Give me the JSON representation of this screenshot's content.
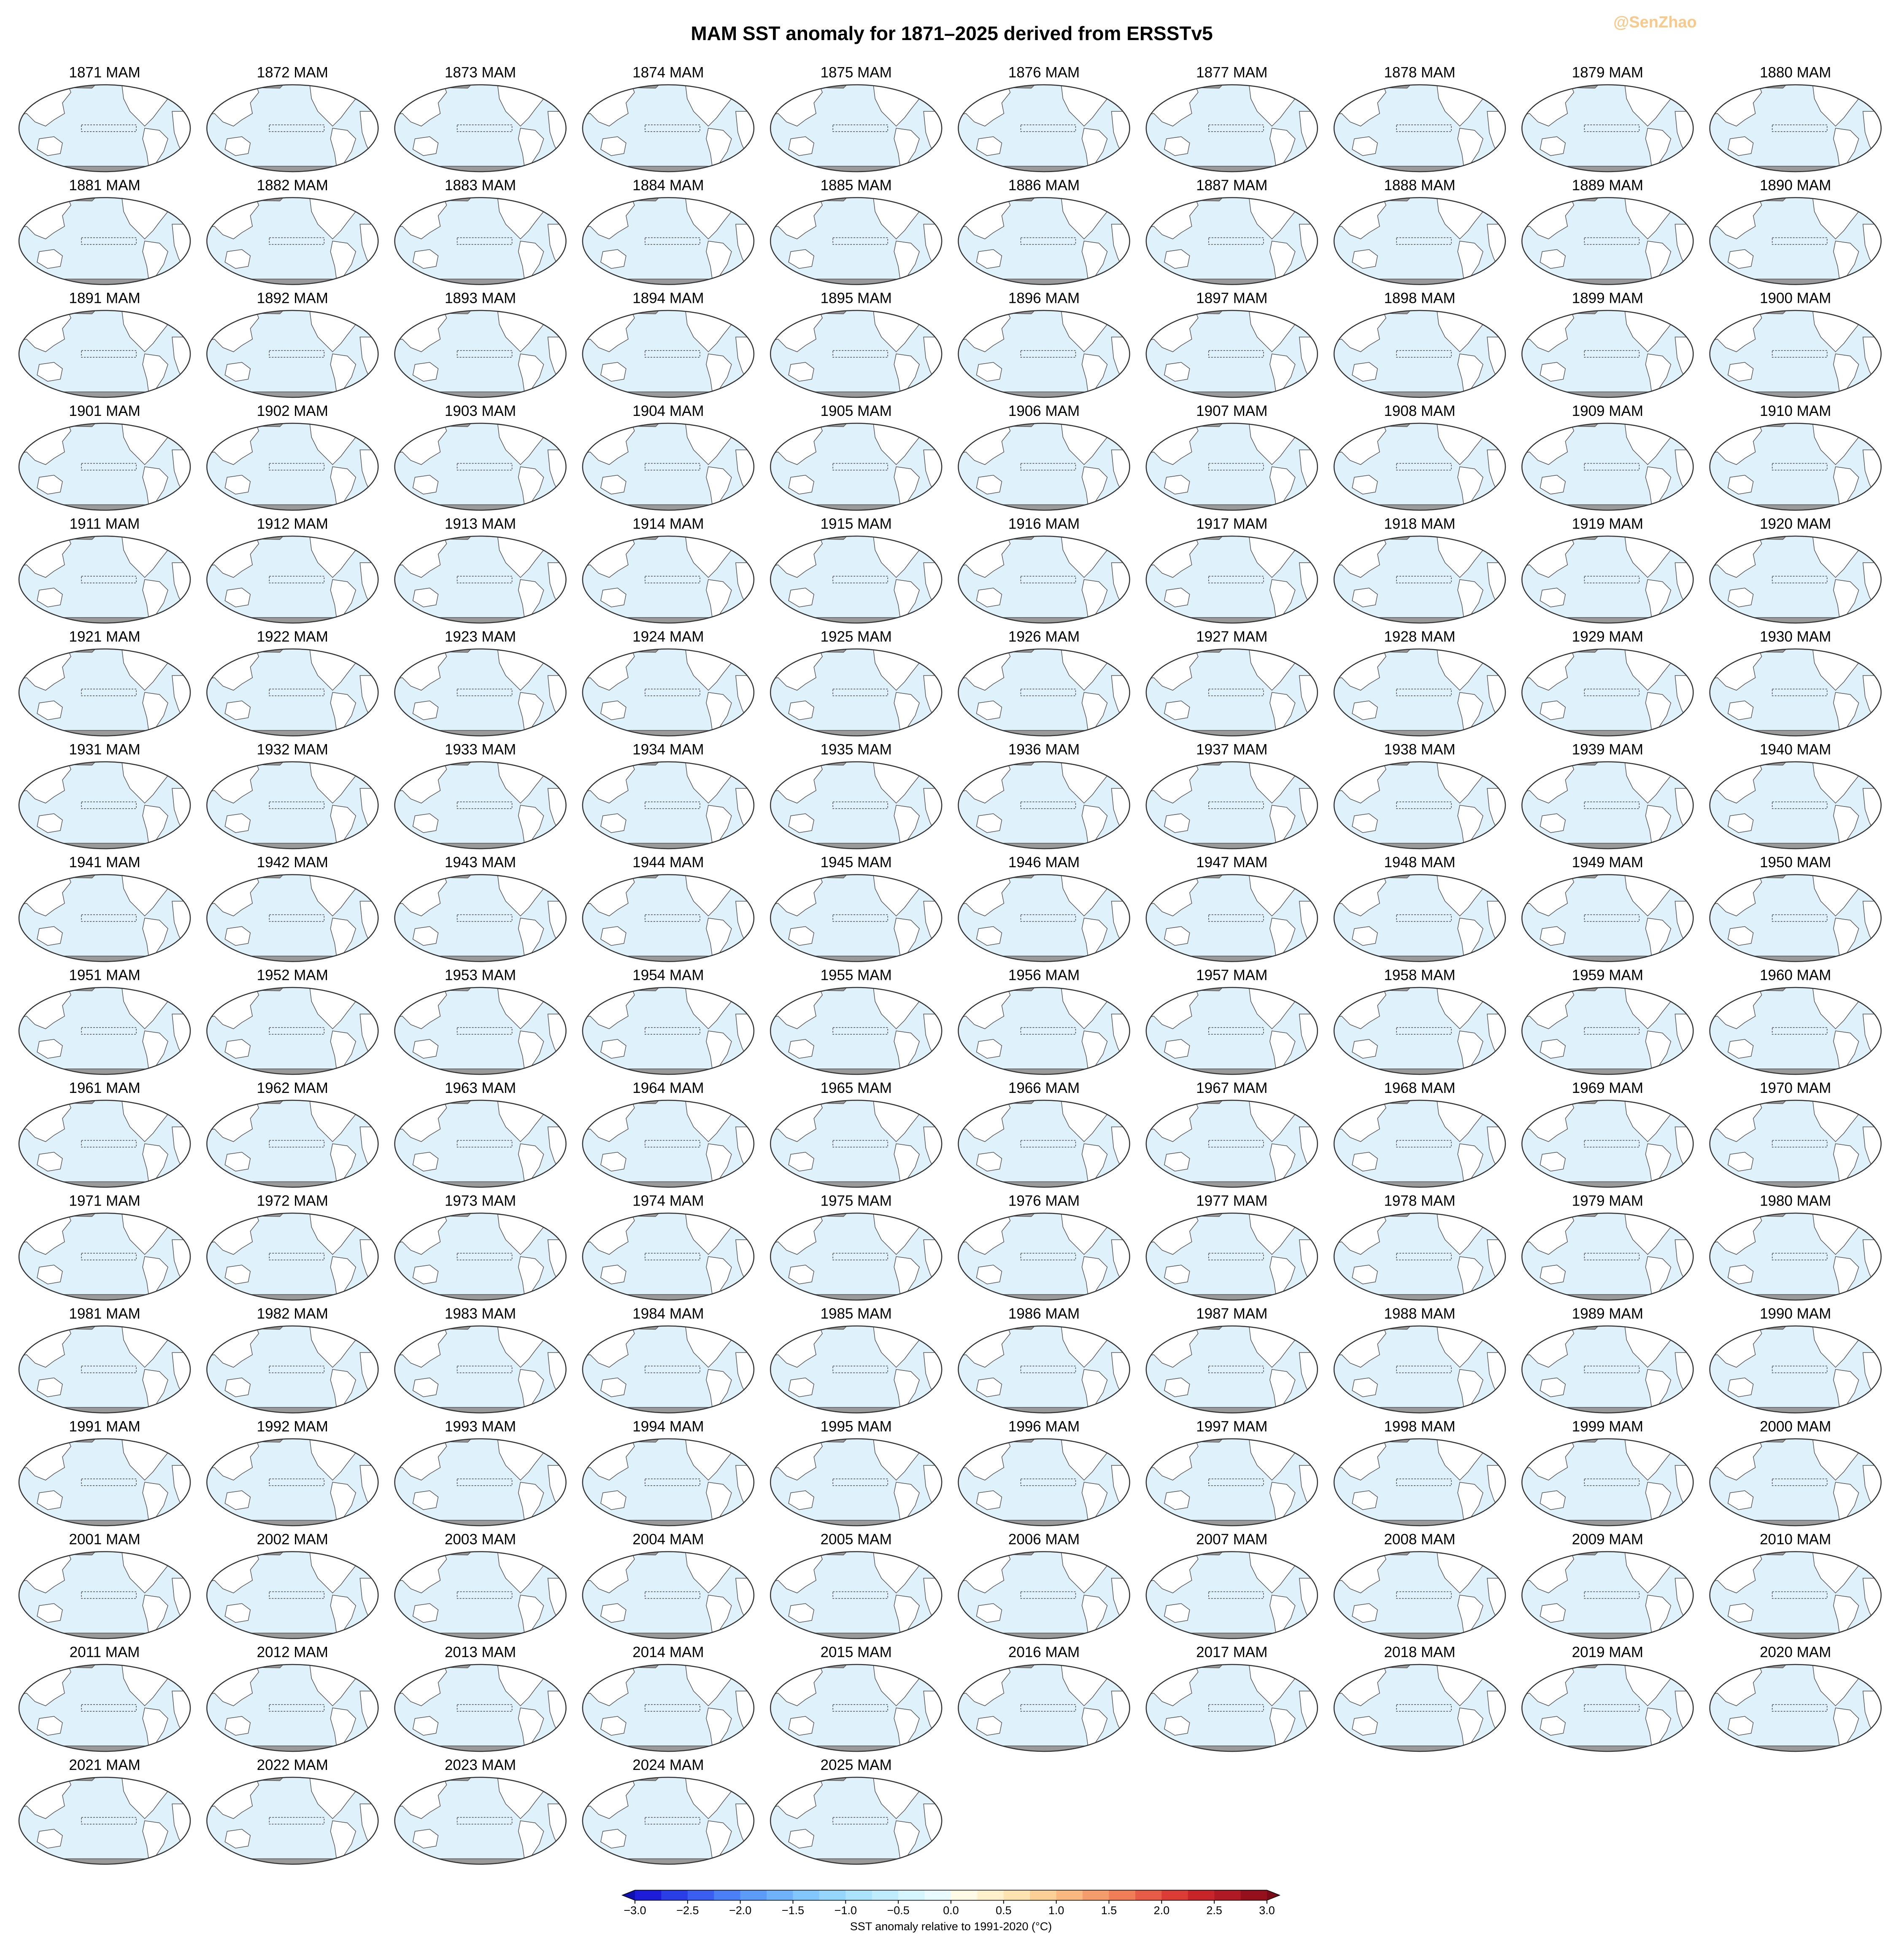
{
  "chart_data": {
    "type": "map",
    "title": "MAM SST anomaly for 1871–2025 derived from ERSSTv5",
    "watermark": "@SenZhao",
    "panels": [
      "1871 MAM",
      "1872 MAM",
      "1873 MAM",
      "1874 MAM",
      "1875 MAM",
      "1876 MAM",
      "1877 MAM",
      "1878 MAM",
      "1879 MAM",
      "1880 MAM",
      "1881 MAM",
      "1882 MAM",
      "1883 MAM",
      "1884 MAM",
      "1885 MAM",
      "1886 MAM",
      "1887 MAM",
      "1888 MAM",
      "1889 MAM",
      "1890 MAM",
      "1891 MAM",
      "1892 MAM",
      "1893 MAM",
      "1894 MAM",
      "1895 MAM",
      "1896 MAM",
      "1897 MAM",
      "1898 MAM",
      "1899 MAM",
      "1900 MAM",
      "1901 MAM",
      "1902 MAM",
      "1903 MAM",
      "1904 MAM",
      "1905 MAM",
      "1906 MAM",
      "1907 MAM",
      "1908 MAM",
      "1909 MAM",
      "1910 MAM",
      "1911 MAM",
      "1912 MAM",
      "1913 MAM",
      "1914 MAM",
      "1915 MAM",
      "1916 MAM",
      "1917 MAM",
      "1918 MAM",
      "1919 MAM",
      "1920 MAM",
      "1921 MAM",
      "1922 MAM",
      "1923 MAM",
      "1924 MAM",
      "1925 MAM",
      "1926 MAM",
      "1927 MAM",
      "1928 MAM",
      "1929 MAM",
      "1930 MAM",
      "1931 MAM",
      "1932 MAM",
      "1933 MAM",
      "1934 MAM",
      "1935 MAM",
      "1936 MAM",
      "1937 MAM",
      "1938 MAM",
      "1939 MAM",
      "1940 MAM",
      "1941 MAM",
      "1942 MAM",
      "1943 MAM",
      "1944 MAM",
      "1945 MAM",
      "1946 MAM",
      "1947 MAM",
      "1948 MAM",
      "1949 MAM",
      "1950 MAM",
      "1951 MAM",
      "1952 MAM",
      "1953 MAM",
      "1954 MAM",
      "1955 MAM",
      "1956 MAM",
      "1957 MAM",
      "1958 MAM",
      "1959 MAM",
      "1960 MAM",
      "1961 MAM",
      "1962 MAM",
      "1963 MAM",
      "1964 MAM",
      "1965 MAM",
      "1966 MAM",
      "1967 MAM",
      "1968 MAM",
      "1969 MAM",
      "1970 MAM",
      "1971 MAM",
      "1972 MAM",
      "1973 MAM",
      "1974 MAM",
      "1975 MAM",
      "1976 MAM",
      "1977 MAM",
      "1978 MAM",
      "1979 MAM",
      "1980 MAM",
      "1981 MAM",
      "1982 MAM",
      "1983 MAM",
      "1984 MAM",
      "1985 MAM",
      "1986 MAM",
      "1987 MAM",
      "1988 MAM",
      "1989 MAM",
      "1990 MAM",
      "1991 MAM",
      "1992 MAM",
      "1993 MAM",
      "1994 MAM",
      "1995 MAM",
      "1996 MAM",
      "1997 MAM",
      "1998 MAM",
      "1999 MAM",
      "2000 MAM",
      "2001 MAM",
      "2002 MAM",
      "2003 MAM",
      "2004 MAM",
      "2005 MAM",
      "2006 MAM",
      "2007 MAM",
      "2008 MAM",
      "2009 MAM",
      "2010 MAM",
      "2011 MAM",
      "2012 MAM",
      "2013 MAM",
      "2014 MAM",
      "2015 MAM",
      "2016 MAM",
      "2017 MAM",
      "2018 MAM",
      "2019 MAM",
      "2020 MAM",
      "2021 MAM",
      "2022 MAM",
      "2023 MAM",
      "2024 MAM",
      "2025 MAM"
    ],
    "colorbar": {
      "label": "SST anomaly relative to 1991-2020 (°C)",
      "xlim": [
        -3,
        3
      ],
      "xticks": [
        {
          "value": -3,
          "label": "−3.0"
        },
        {
          "value": -2.5,
          "label": "−2.5"
        },
        {
          "value": -2,
          "label": "−2.0"
        },
        {
          "value": -1.5,
          "label": "−1.5"
        },
        {
          "value": -1,
          "label": "−1.0"
        },
        {
          "value": -0.5,
          "label": "−0.5"
        },
        {
          "value": 0,
          "label": "0.0"
        },
        {
          "value": 0.5,
          "label": "0.5"
        },
        {
          "value": 1,
          "label": "1.0"
        },
        {
          "value": 1.5,
          "label": "1.5"
        },
        {
          "value": 2,
          "label": "2.0"
        },
        {
          "value": 2.5,
          "label": "2.5"
        },
        {
          "value": 3,
          "label": "3.0"
        }
      ],
      "colors": [
        "#1c1cd9",
        "#2a3ee6",
        "#3a5ff0",
        "#4a7ff5",
        "#5d9bf8",
        "#6fb2fa",
        "#83c6fb",
        "#97d6fc",
        "#abe3fd",
        "#c0edfe",
        "#d5f5ff",
        "#eafbff",
        "#fffbe6",
        "#fff1cc",
        "#fde3b0",
        "#fbd096",
        "#f8b87f",
        "#f49c6b",
        "#ee7d58",
        "#e65c46",
        "#db3c36",
        "#c8252b",
        "#b01a24",
        "#93101c"
      ],
      "under_color": "#1010b0",
      "over_color": "#7a0a18"
    }
  }
}
